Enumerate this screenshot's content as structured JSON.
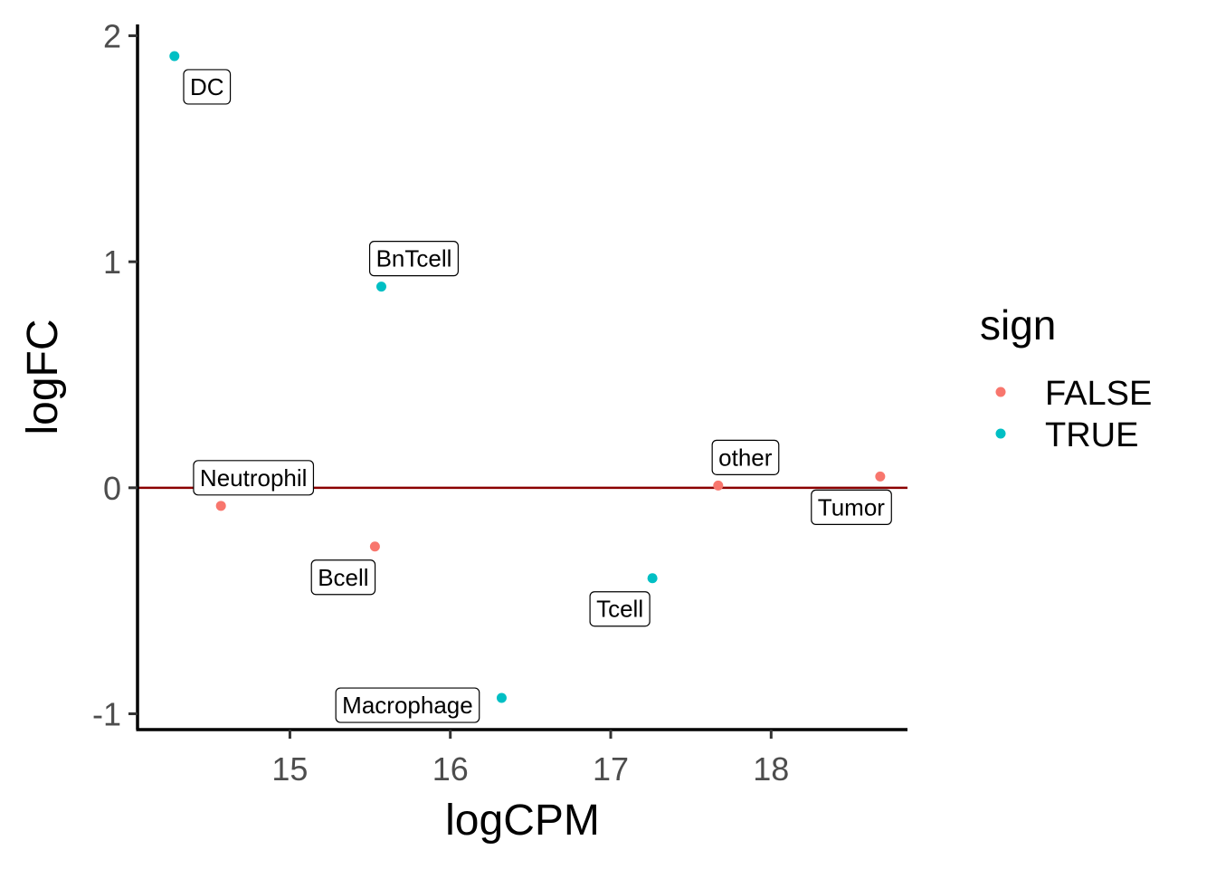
{
  "chart_data": {
    "type": "scatter",
    "xlabel": "logCPM",
    "ylabel": "logFC",
    "xlim": [
      14.05,
      18.85
    ],
    "ylim": [
      -1.07,
      2.05
    ],
    "x_ticks": [
      15,
      16,
      17,
      18
    ],
    "y_ticks": [
      -1,
      0,
      1,
      2
    ],
    "hline": 0,
    "hline_color": "#8b0000",
    "legend": {
      "title": "sign",
      "placement": "right",
      "entries": [
        {
          "name": "FALSE",
          "color": "#f8766d"
        },
        {
          "name": "TRUE",
          "color": "#00bfc4"
        }
      ]
    },
    "points": [
      {
        "label": "DC",
        "x": 14.28,
        "y": 1.91,
        "sign": "TRUE"
      },
      {
        "label": "BnTcell",
        "x": 15.57,
        "y": 0.89,
        "sign": "TRUE"
      },
      {
        "label": "Neutrophil",
        "x": 14.57,
        "y": -0.08,
        "sign": "FALSE"
      },
      {
        "label": "Bcell",
        "x": 15.53,
        "y": -0.26,
        "sign": "FALSE"
      },
      {
        "label": "other",
        "x": 17.67,
        "y": 0.01,
        "sign": "FALSE"
      },
      {
        "label": "Tumor",
        "x": 18.68,
        "y": 0.05,
        "sign": "FALSE"
      },
      {
        "label": "Tcell",
        "x": 17.26,
        "y": -0.4,
        "sign": "TRUE"
      },
      {
        "label": "Macrophage",
        "x": 16.32,
        "y": -0.93,
        "sign": "TRUE"
      }
    ]
  }
}
